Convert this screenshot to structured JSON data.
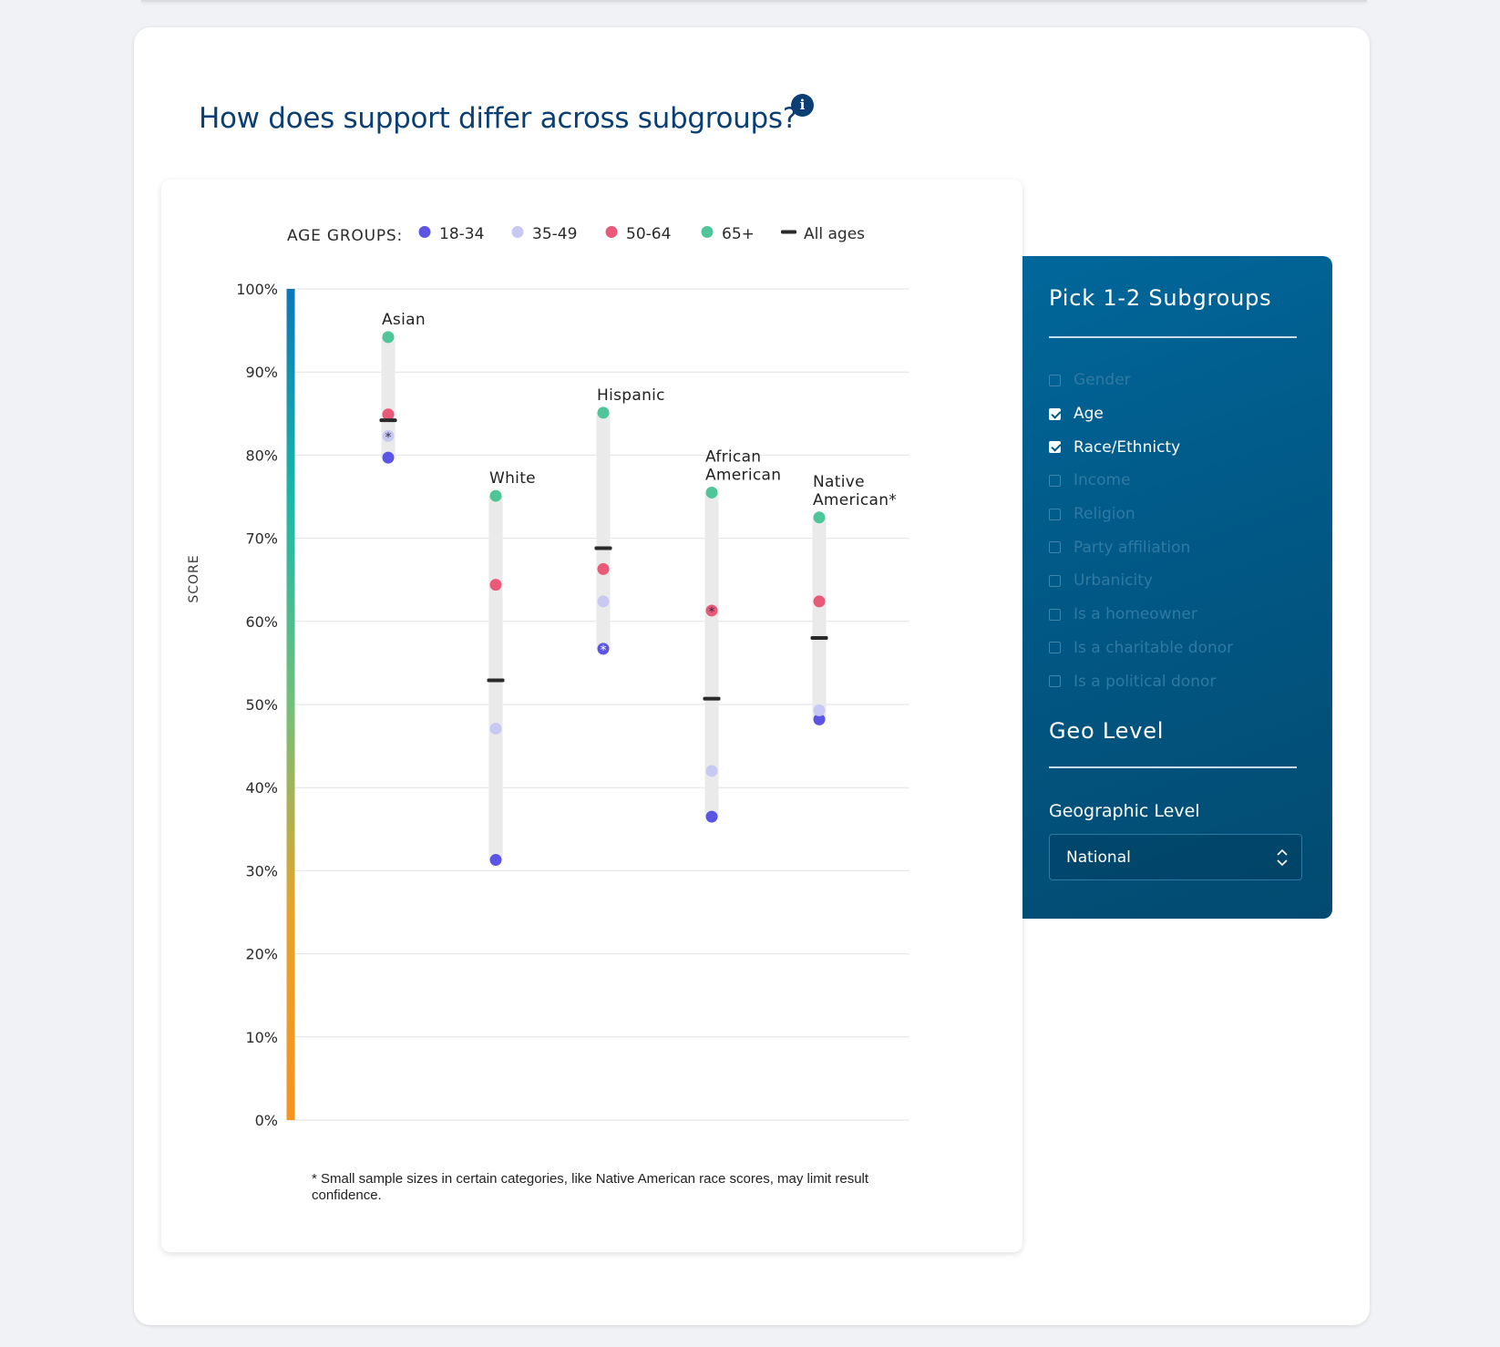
{
  "page": {
    "title": "How does support differ across subgroups?",
    "info_icon": "info-icon"
  },
  "chart_data": {
    "type": "scatter",
    "ylabel": "SCORE",
    "ylim": [
      0,
      100
    ],
    "y_ticks": [
      "100%",
      "90%",
      "80%",
      "70%",
      "60%",
      "50%",
      "40%",
      "30%",
      "20%",
      "10%",
      "0%"
    ],
    "grid": true,
    "legend": {
      "title": "AGE GROUPS:",
      "placement": "top",
      "entries": [
        {
          "label": "18-34",
          "color": "#5b55e6",
          "marker": "dot"
        },
        {
          "label": "35-49",
          "color": "#c8c9f3",
          "marker": "dot"
        },
        {
          "label": "50-64",
          "color": "#ea5977",
          "marker": "dot"
        },
        {
          "label": "65+",
          "color": "#4fc59a",
          "marker": "dot"
        },
        {
          "label": "All ages",
          "color": "#2a2a2a",
          "marker": "dash"
        }
      ]
    },
    "groups": [
      {
        "label": [
          "Asian"
        ],
        "values": {
          "18-34": 79.7,
          "35-49": 82.3,
          "50-64": 84.9,
          "65+": 94.2
        },
        "all_ages": 84.2,
        "flagged": [
          "35-49"
        ]
      },
      {
        "label": [
          "White"
        ],
        "values": {
          "18-34": 31.3,
          "35-49": 47.1,
          "50-64": 64.4,
          "65+": 75.1
        },
        "all_ages": 52.9,
        "flagged": []
      },
      {
        "label": [
          "Hispanic"
        ],
        "values": {
          "18-34": 56.7,
          "35-49": 62.4,
          "50-64": 66.3,
          "65+": 85.1
        },
        "all_ages": 68.8,
        "flagged": [
          "18-34"
        ]
      },
      {
        "label": [
          "African",
          "American"
        ],
        "values": {
          "18-34": 36.5,
          "35-49": 42.0,
          "50-64": 61.3,
          "65+": 75.5
        },
        "all_ages": 50.7,
        "flagged": [
          "50-64"
        ]
      },
      {
        "label": [
          "Native",
          "American*"
        ],
        "values": {
          "18-34": 48.2,
          "35-49": 49.3,
          "50-64": 62.4,
          "65+": 72.5
        },
        "all_ages": 58.0,
        "flagged": []
      }
    ],
    "footnote": "* Small sample sizes in certain categories, like Native American race scores, may limit result confidence.",
    "axis_gradient": [
      "#0a78b8",
      "#19b8aa",
      "#72c07a",
      "#e7a32a",
      "#f7931e"
    ]
  },
  "panel": {
    "title": "Pick 1-2 Subgroups",
    "subgroups": [
      {
        "label": "Gender",
        "checked": false
      },
      {
        "label": "Age",
        "checked": true
      },
      {
        "label": "Race/Ethnicty",
        "checked": true
      },
      {
        "label": "Income",
        "checked": false
      },
      {
        "label": "Religion",
        "checked": false
      },
      {
        "label": "Party affiliation",
        "checked": false
      },
      {
        "label": "Urbanicity",
        "checked": false
      },
      {
        "label": "Is a homeowner",
        "checked": false
      },
      {
        "label": "Is a charitable donor",
        "checked": false
      },
      {
        "label": "Is a political donor",
        "checked": false
      }
    ],
    "geo_title": "Geo Level",
    "geo_field_label": "Geographic Level",
    "geo_selected": "National",
    "chevron_icon": "chevron-up-down-icon"
  }
}
